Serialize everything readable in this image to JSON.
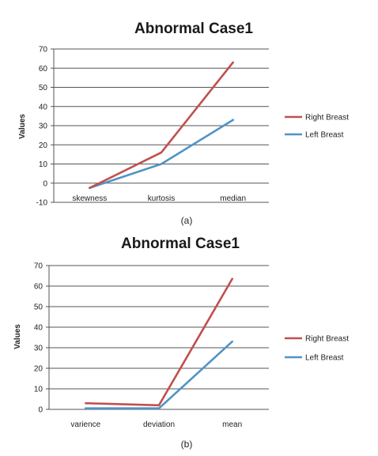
{
  "chart_data": [
    {
      "type": "line",
      "title": "Abnormal Case1",
      "ylabel": "Values",
      "xlabel": "",
      "caption": "(a)",
      "categories": [
        "skewness",
        "kurtosis",
        "median"
      ],
      "ylim": [
        -10,
        70
      ],
      "yticks": [
        -10,
        0,
        10,
        20,
        30,
        40,
        50,
        60,
        70
      ],
      "grid": true,
      "legend_position": "right",
      "series": [
        {
          "name": "Right Breast",
          "values": [
            -2.5,
            16,
            63
          ],
          "color": "#c0504d"
        },
        {
          "name": "Left Breast",
          "values": [
            -2.5,
            10,
            33
          ],
          "color": "#4f93c8"
        }
      ]
    },
    {
      "type": "line",
      "title": "Abnormal Case1",
      "ylabel": "Values",
      "xlabel": "",
      "caption": "(b)",
      "categories": [
        "varience",
        "deviation",
        "mean"
      ],
      "ylim": [
        0,
        70
      ],
      "yticks": [
        0,
        10,
        20,
        30,
        40,
        50,
        60,
        70
      ],
      "grid": true,
      "legend_position": "right",
      "series": [
        {
          "name": "Right Breast",
          "values": [
            3,
            2,
            63.5
          ],
          "color": "#c0504d"
        },
        {
          "name": "Left Breast",
          "values": [
            0.5,
            0.5,
            33
          ],
          "color": "#4f93c8"
        }
      ]
    }
  ]
}
